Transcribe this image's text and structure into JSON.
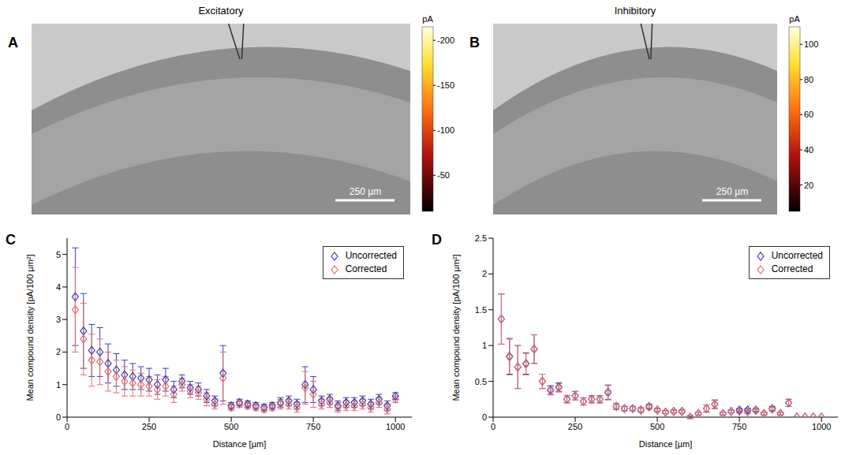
{
  "chart_data": [
    {
      "panel": "A",
      "type": "heatmap",
      "title": "Excitatory",
      "colorbar": {
        "label": "pA",
        "range": [
          -10,
          -215
        ],
        "ticks": [
          -200,
          -150,
          -100,
          -50
        ]
      },
      "annotations": [
        "250 µm"
      ]
    },
    {
      "panel": "B",
      "type": "heatmap",
      "title": "Inhibitory",
      "colorbar": {
        "label": "pA",
        "range": [
          5,
          110
        ],
        "ticks": [
          20,
          40,
          60,
          80,
          100
        ]
      },
      "annotations": [
        "250 µm"
      ]
    },
    {
      "panel": "C",
      "type": "scatter",
      "x_label": "Distance [µm]",
      "y_label": "Mean compound density [pA/100 µm²]",
      "xlim": [
        0,
        1050
      ],
      "ylim": [
        0,
        5.5
      ],
      "xticks": [
        0,
        250,
        500,
        750,
        1000
      ],
      "yticks": [
        0,
        1,
        2,
        3,
        4,
        5
      ],
      "legend": "upper right",
      "x": [
        25,
        50,
        75,
        100,
        125,
        150,
        175,
        200,
        225,
        250,
        275,
        300,
        325,
        350,
        375,
        400,
        425,
        450,
        475,
        500,
        525,
        550,
        575,
        600,
        625,
        650,
        675,
        700,
        725,
        750,
        775,
        800,
        825,
        850,
        875,
        900,
        925,
        950,
        975,
        1000
      ],
      "series": [
        {
          "name": "Uncorrected",
          "color": "#3c3cc0",
          "marker": "diamond",
          "values": [
            3.7,
            2.65,
            2.05,
            2.0,
            1.65,
            1.45,
            1.3,
            1.25,
            1.2,
            1.15,
            1.0,
            1.15,
            0.85,
            1.1,
            0.9,
            0.85,
            0.65,
            0.5,
            1.35,
            0.35,
            0.45,
            0.4,
            0.35,
            0.3,
            0.35,
            0.45,
            0.5,
            0.4,
            1.0,
            0.85,
            0.5,
            0.55,
            0.35,
            0.45,
            0.45,
            0.5,
            0.4,
            0.55,
            0.35,
            0.65
          ],
          "errors": [
            1.5,
            1.15,
            0.8,
            0.75,
            0.6,
            0.5,
            0.45,
            0.4,
            0.35,
            0.35,
            0.3,
            0.35,
            0.25,
            0.2,
            0.2,
            0.2,
            0.2,
            0.15,
            0.85,
            0.1,
            0.1,
            0.1,
            0.1,
            0.1,
            0.1,
            0.15,
            0.15,
            0.15,
            0.55,
            0.4,
            0.15,
            0.15,
            0.15,
            0.15,
            0.15,
            0.15,
            0.15,
            0.15,
            0.15,
            0.1
          ]
        },
        {
          "name": "Corrected",
          "color": "#e07068",
          "marker": "diamond",
          "values": [
            3.3,
            2.4,
            1.75,
            1.7,
            1.4,
            1.25,
            1.1,
            1.05,
            1.0,
            0.95,
            0.85,
            0.95,
            0.7,
            1.0,
            0.8,
            0.75,
            0.55,
            0.4,
            1.2,
            0.3,
            0.4,
            0.35,
            0.3,
            0.25,
            0.3,
            0.4,
            0.4,
            0.3,
            0.9,
            0.7,
            0.4,
            0.45,
            0.3,
            0.35,
            0.35,
            0.4,
            0.3,
            0.45,
            0.25,
            0.55
          ],
          "errors": [
            1.3,
            1.1,
            0.8,
            0.7,
            0.6,
            0.5,
            0.45,
            0.4,
            0.35,
            0.3,
            0.3,
            0.3,
            0.25,
            0.2,
            0.2,
            0.2,
            0.2,
            0.15,
            0.8,
            0.1,
            0.1,
            0.1,
            0.1,
            0.1,
            0.1,
            0.15,
            0.15,
            0.15,
            0.5,
            0.4,
            0.15,
            0.15,
            0.15,
            0.15,
            0.15,
            0.15,
            0.15,
            0.15,
            0.15,
            0.1
          ]
        }
      ]
    },
    {
      "panel": "D",
      "type": "scatter",
      "x_label": "Distance [µm]",
      "y_label": "Mean compound density [pA/100 µm²]",
      "xlim": [
        0,
        1050
      ],
      "ylim": [
        0,
        2.5
      ],
      "xticks": [
        0,
        250,
        500,
        750,
        1000
      ],
      "yticks": [
        0,
        0.5,
        1,
        1.5,
        2,
        2.5
      ],
      "legend": "upper right",
      "x": [
        25,
        50,
        75,
        100,
        125,
        150,
        175,
        200,
        225,
        250,
        275,
        300,
        325,
        350,
        375,
        400,
        425,
        450,
        475,
        500,
        525,
        550,
        575,
        600,
        625,
        650,
        675,
        700,
        725,
        750,
        775,
        800,
        825,
        850,
        875,
        900,
        925,
        950,
        975,
        1000
      ],
      "series": [
        {
          "name": "Uncorrected",
          "color": "#3c3cc0",
          "marker": "diamond",
          "values": [
            1.37,
            0.85,
            0.7,
            0.75,
            0.95,
            0.5,
            0.38,
            0.42,
            0.25,
            0.3,
            0.22,
            0.25,
            0.25,
            0.35,
            0.15,
            0.12,
            0.12,
            0.1,
            0.15,
            0.1,
            0.07,
            0.08,
            0.08,
            0.0,
            0.05,
            0.12,
            0.18,
            0.05,
            0.08,
            0.1,
            0.1,
            0.1,
            0.05,
            0.12,
            0.05,
            0.2,
            0.0,
            0.0,
            0.0,
            0.0
          ],
          "errors": [
            0.35,
            0.25,
            0.3,
            0.15,
            0.2,
            0.1,
            0.06,
            0.06,
            0.05,
            0.06,
            0.05,
            0.05,
            0.05,
            0.1,
            0.04,
            0.03,
            0.03,
            0.03,
            0.03,
            0.02,
            0.02,
            0.02,
            0.02,
            0.02,
            0.02,
            0.05,
            0.06,
            0.02,
            0.02,
            0.02,
            0.02,
            0.02,
            0.02,
            0.03,
            0.02,
            0.05,
            0.0,
            0.0,
            0.0,
            0.0
          ]
        },
        {
          "name": "Corrected",
          "color": "#e07068",
          "marker": "diamond",
          "values": [
            1.37,
            0.84,
            0.7,
            0.74,
            0.95,
            0.5,
            0.37,
            0.41,
            0.25,
            0.3,
            0.22,
            0.25,
            0.25,
            0.34,
            0.15,
            0.12,
            0.12,
            0.1,
            0.14,
            0.1,
            0.07,
            0.08,
            0.08,
            0.0,
            0.05,
            0.12,
            0.18,
            0.05,
            0.08,
            0.08,
            0.07,
            0.09,
            0.05,
            0.11,
            0.05,
            0.2,
            0.0,
            0.0,
            0.0,
            0.0
          ],
          "errors": [
            0.35,
            0.25,
            0.3,
            0.15,
            0.2,
            0.1,
            0.06,
            0.06,
            0.05,
            0.06,
            0.05,
            0.05,
            0.05,
            0.1,
            0.04,
            0.03,
            0.03,
            0.03,
            0.03,
            0.02,
            0.02,
            0.02,
            0.02,
            0.02,
            0.02,
            0.05,
            0.06,
            0.02,
            0.02,
            0.02,
            0.02,
            0.02,
            0.02,
            0.03,
            0.02,
            0.05,
            0.0,
            0.0,
            0.0,
            0.0
          ]
        }
      ]
    }
  ]
}
